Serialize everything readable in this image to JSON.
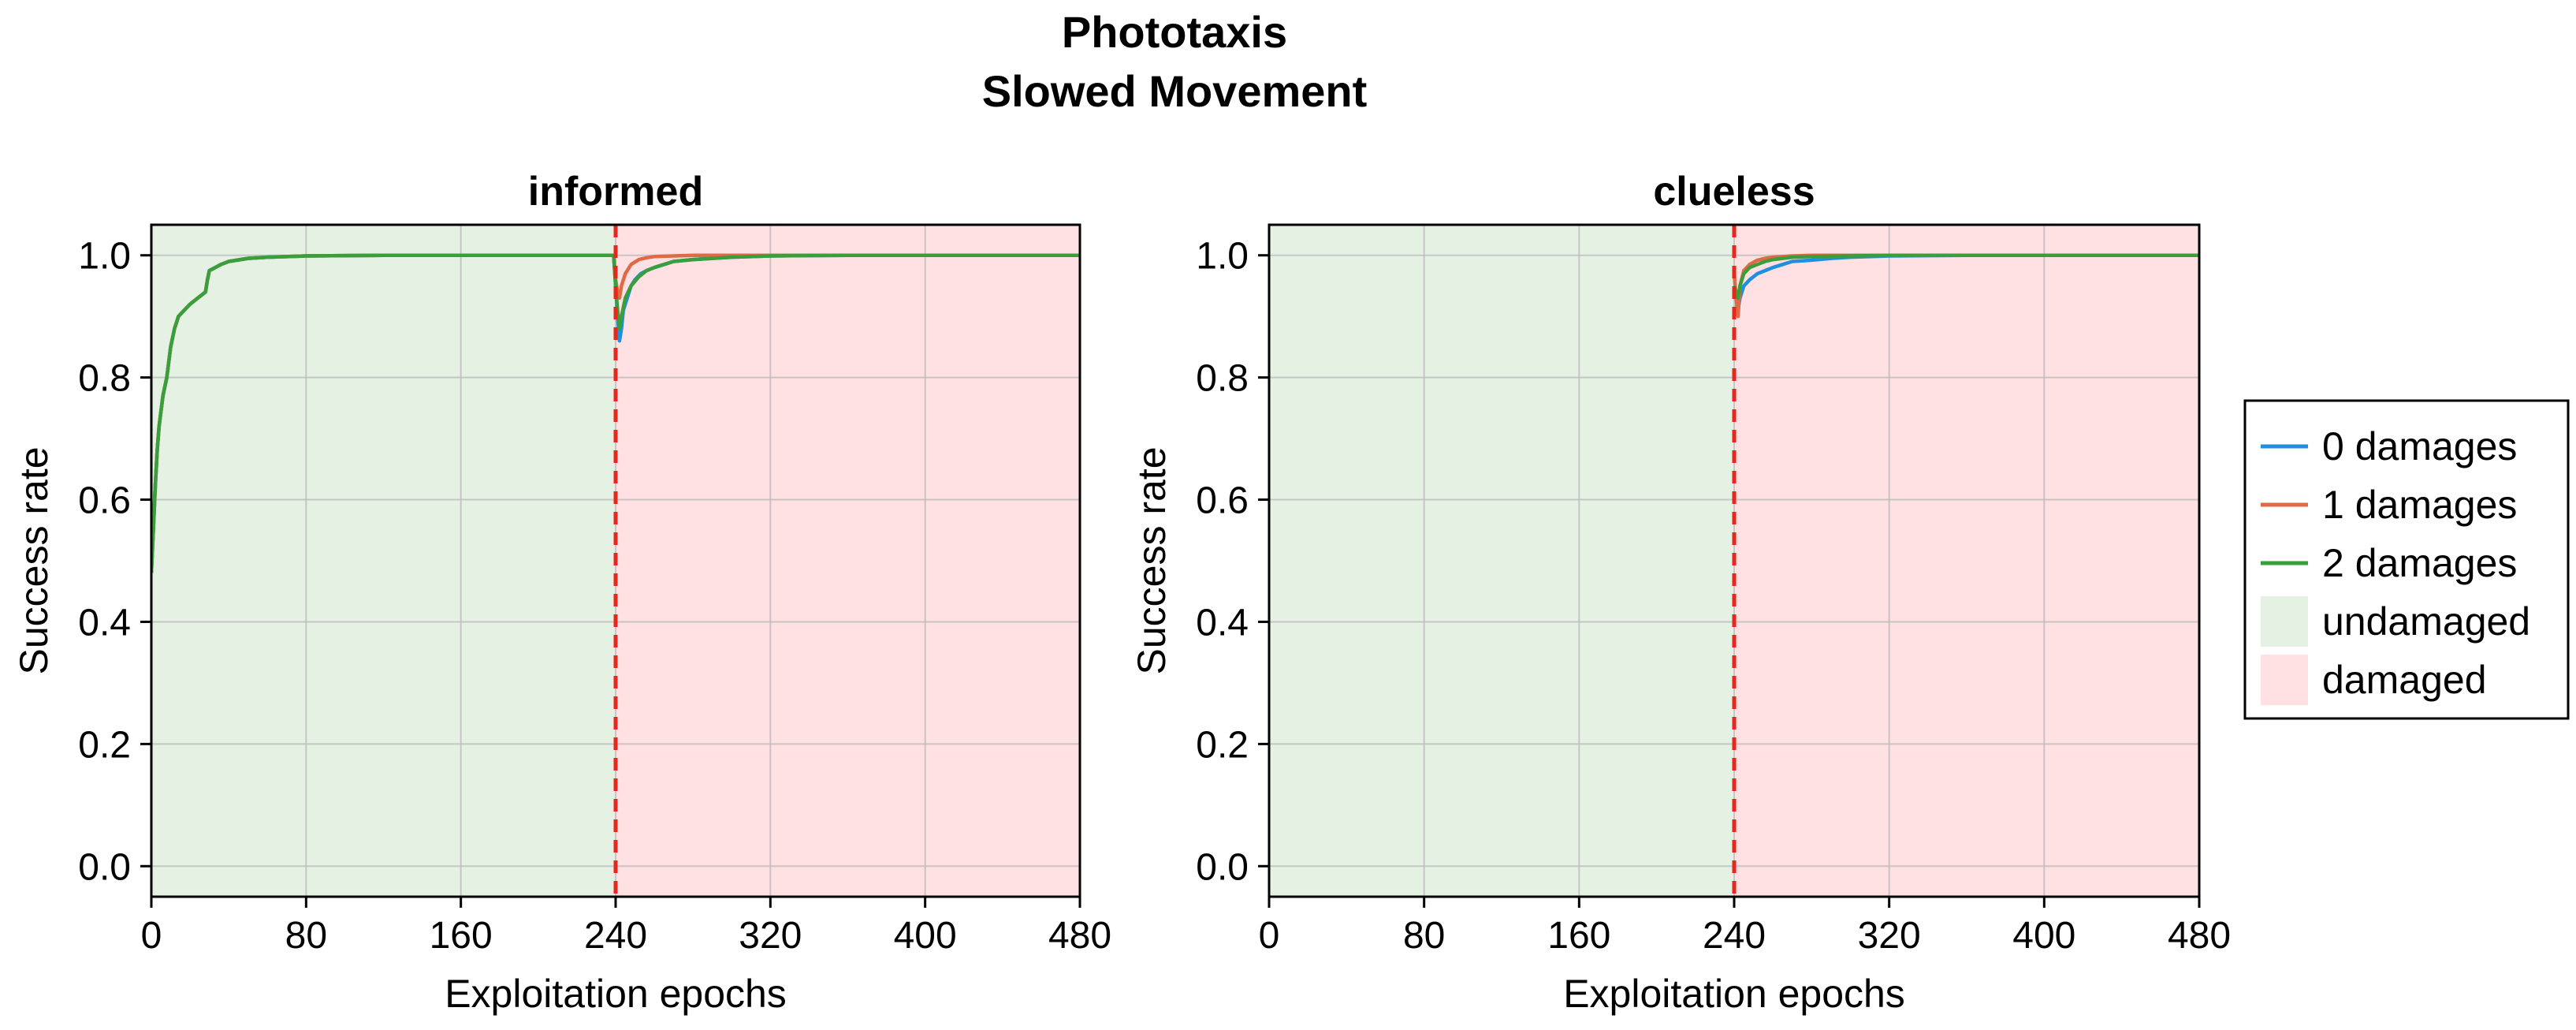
{
  "figure": {
    "title_line1": "Phototaxis",
    "title_line2": "Slowed Movement"
  },
  "colors": {
    "series_0": "#1f8fe0",
    "series_1": "#e06a45",
    "series_2": "#3a9e3a",
    "undamaged_region": "#e4f1e3",
    "damaged_region": "#ffe0e3",
    "damage_line": "#e8261c",
    "grid": "#bdbdbd"
  },
  "legend": {
    "position": "right",
    "items": [
      {
        "label": "0 damages",
        "kind": "line",
        "color_key": "series_0"
      },
      {
        "label": "1 damages",
        "kind": "line",
        "color_key": "series_1"
      },
      {
        "label": "2 damages",
        "kind": "line",
        "color_key": "series_2"
      },
      {
        "label": "undamaged",
        "kind": "patch",
        "color_key": "undamaged_region"
      },
      {
        "label": "damaged",
        "kind": "patch",
        "color_key": "damaged_region"
      }
    ]
  },
  "chart_data": [
    {
      "type": "line",
      "title": "informed",
      "xlabel": "Exploitation epochs",
      "ylabel": "Success rate",
      "xlim": [
        0,
        480
      ],
      "ylim": [
        -0.05,
        1.05
      ],
      "xticks": [
        0,
        80,
        160,
        240,
        320,
        400,
        480
      ],
      "yticks": [
        0.0,
        0.2,
        0.4,
        0.6,
        0.8,
        1.0
      ],
      "grid": true,
      "regions": [
        {
          "name": "undamaged",
          "x": [
            0,
            240
          ]
        },
        {
          "name": "damaged",
          "x": [
            240,
            480
          ]
        }
      ],
      "vline": 240,
      "series": [
        {
          "name": "0 damages",
          "x": [
            0,
            1,
            2,
            3,
            4,
            6,
            8,
            10,
            12,
            14,
            17,
            20,
            24,
            28,
            29,
            30,
            33,
            36,
            40,
            50,
            60,
            80,
            120,
            160,
            200,
            239,
            240,
            241,
            242,
            243,
            244,
            246,
            248,
            250,
            253,
            256,
            260,
            265,
            270,
            280,
            290,
            300,
            320,
            360,
            400,
            440,
            480
          ],
          "y": [
            0.48,
            0.55,
            0.62,
            0.68,
            0.72,
            0.77,
            0.8,
            0.85,
            0.88,
            0.9,
            0.91,
            0.92,
            0.93,
            0.94,
            0.96,
            0.975,
            0.98,
            0.985,
            0.99,
            0.995,
            0.997,
            0.999,
            1.0,
            1.0,
            1.0,
            1.0,
            0.95,
            0.9,
            0.86,
            0.88,
            0.91,
            0.93,
            0.95,
            0.96,
            0.97,
            0.975,
            0.98,
            0.985,
            0.99,
            0.993,
            0.995,
            0.997,
            0.999,
            1.0,
            1.0,
            1.0,
            1.0
          ]
        },
        {
          "name": "1 damages",
          "x": [
            0,
            1,
            2,
            3,
            4,
            6,
            8,
            10,
            12,
            14,
            17,
            20,
            24,
            28,
            29,
            30,
            33,
            36,
            40,
            50,
            60,
            80,
            120,
            160,
            200,
            239,
            240,
            241,
            242,
            243,
            245,
            248,
            252,
            256,
            260,
            270,
            280,
            300,
            360,
            420,
            480
          ],
          "y": [
            0.48,
            0.55,
            0.62,
            0.68,
            0.72,
            0.77,
            0.8,
            0.85,
            0.88,
            0.9,
            0.91,
            0.92,
            0.93,
            0.94,
            0.96,
            0.975,
            0.98,
            0.985,
            0.99,
            0.995,
            0.997,
            0.999,
            1.0,
            1.0,
            1.0,
            1.0,
            0.96,
            0.94,
            0.93,
            0.95,
            0.97,
            0.985,
            0.993,
            0.996,
            0.998,
            0.999,
            1.0,
            1.0,
            1.0,
            1.0,
            1.0
          ]
        },
        {
          "name": "2 damages",
          "x": [
            0,
            1,
            2,
            3,
            4,
            6,
            8,
            10,
            12,
            14,
            17,
            20,
            24,
            28,
            29,
            30,
            33,
            36,
            40,
            50,
            60,
            80,
            120,
            160,
            200,
            239,
            240,
            241,
            242,
            243,
            245,
            248,
            252,
            256,
            260,
            265,
            270,
            280,
            290,
            300,
            320,
            360,
            400,
            440,
            480
          ],
          "y": [
            0.48,
            0.55,
            0.62,
            0.68,
            0.72,
            0.77,
            0.8,
            0.85,
            0.88,
            0.9,
            0.91,
            0.92,
            0.93,
            0.94,
            0.96,
            0.975,
            0.98,
            0.985,
            0.99,
            0.995,
            0.997,
            0.999,
            1.0,
            1.0,
            1.0,
            1.0,
            0.95,
            0.91,
            0.88,
            0.9,
            0.93,
            0.95,
            0.965,
            0.975,
            0.98,
            0.985,
            0.99,
            0.993,
            0.995,
            0.997,
            0.999,
            1.0,
            1.0,
            1.0,
            1.0
          ]
        }
      ]
    },
    {
      "type": "line",
      "title": "clueless",
      "xlabel": "Exploitation epochs",
      "ylabel": "Success rate",
      "xlim": [
        0,
        480
      ],
      "ylim": [
        -0.05,
        1.05
      ],
      "xticks": [
        0,
        80,
        160,
        240,
        320,
        400,
        480
      ],
      "yticks": [
        0.0,
        0.2,
        0.4,
        0.6,
        0.8,
        1.0
      ],
      "grid": true,
      "regions": [
        {
          "name": "undamaged",
          "x": [
            0,
            240
          ]
        },
        {
          "name": "damaged",
          "x": [
            240,
            480
          ]
        }
      ],
      "vline": 240,
      "series": [
        {
          "name": "0 damages",
          "x": [
            240,
            241,
            242,
            243,
            245,
            248,
            252,
            256,
            260,
            265,
            270,
            280,
            290,
            300,
            320,
            360,
            400,
            440,
            480
          ],
          "y": [
            0.95,
            0.93,
            0.91,
            0.93,
            0.95,
            0.96,
            0.97,
            0.975,
            0.98,
            0.985,
            0.99,
            0.992,
            0.995,
            0.997,
            0.999,
            1.0,
            1.0,
            1.0,
            1.0
          ]
        },
        {
          "name": "1 damages",
          "x": [
            240,
            241,
            242,
            243,
            245,
            248,
            252,
            256,
            260,
            270,
            280,
            300,
            360,
            420,
            480
          ],
          "y": [
            0.97,
            0.93,
            0.9,
            0.95,
            0.975,
            0.985,
            0.992,
            0.995,
            0.997,
            0.999,
            1.0,
            1.0,
            1.0,
            1.0,
            1.0
          ]
        },
        {
          "name": "2 damages",
          "x": [
            240,
            241,
            242,
            243,
            245,
            248,
            252,
            256,
            260,
            265,
            270,
            280,
            300,
            320,
            360,
            420,
            480
          ],
          "y": [
            0.95,
            0.94,
            0.93,
            0.95,
            0.97,
            0.98,
            0.985,
            0.99,
            0.993,
            0.995,
            0.997,
            0.998,
            0.999,
            1.0,
            1.0,
            1.0,
            1.0
          ]
        }
      ]
    }
  ]
}
